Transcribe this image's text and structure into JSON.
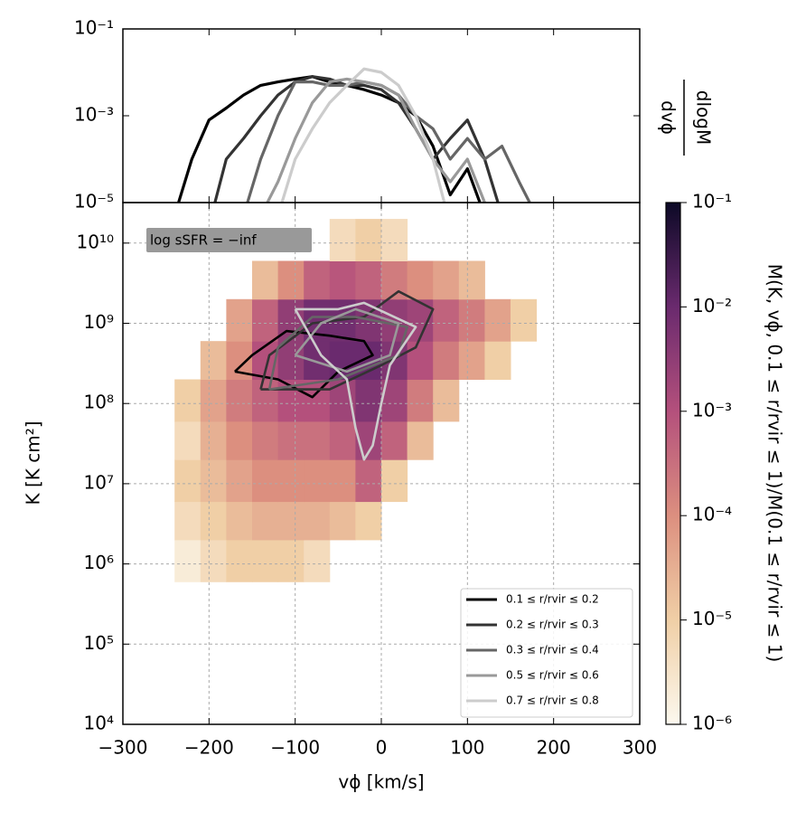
{
  "chart_data": [
    {
      "type": "line",
      "xlim": [
        -300,
        300
      ],
      "xticks": [
        -300,
        -200,
        -100,
        0,
        100,
        200,
        300
      ],
      "ylim": [
        1e-05,
        0.1
      ],
      "log_y": true,
      "yticks": [
        {
          "value": 0.1,
          "label": "10⁻¹"
        },
        {
          "value": 0.001,
          "label": "10⁻³"
        },
        {
          "value": 1e-05,
          "label": "10⁻⁵"
        }
      ],
      "y2label_numerator": "dlogM",
      "y2label_denominator": "dvϕ",
      "legend": "lower right",
      "x": [
        -260,
        -240,
        -220,
        -200,
        -180,
        -160,
        -140,
        -120,
        -100,
        -80,
        -60,
        -40,
        -20,
        0,
        20,
        40,
        60,
        80,
        100,
        120,
        140,
        160,
        180
      ],
      "series": [
        {
          "name": "0.1 ≤ r/rvir ≤ 0.2",
          "color": "#000000",
          "values": [
            null,
            5e-06,
            0.0001,
            0.0008,
            0.0015,
            0.003,
            0.005,
            0.006,
            0.007,
            0.008,
            0.006,
            0.005,
            0.004,
            0.003,
            0.002,
            0.001,
            0.0002,
            1.5e-05,
            6e-05,
            5e-06,
            null,
            null,
            null
          ]
        },
        {
          "name": "0.2 ≤ r/rvir ≤ 0.3",
          "color": "#333333",
          "values": [
            null,
            null,
            null,
            3e-06,
            0.0001,
            0.0003,
            0.001,
            0.003,
            0.006,
            0.008,
            0.007,
            0.005,
            0.005,
            0.004,
            0.002,
            0.0005,
            0.0001,
            0.0003,
            0.0008,
            0.0001,
            5e-06,
            null,
            null
          ]
        },
        {
          "name": "0.3 ≤ r/rvir ≤ 0.4",
          "color": "#666666",
          "values": [
            null,
            null,
            null,
            null,
            null,
            5e-06,
            0.0001,
            0.001,
            0.006,
            0.006,
            0.005,
            0.005,
            0.006,
            0.005,
            0.003,
            0.001,
            0.0005,
            0.0001,
            0.0003,
            0.0001,
            0.0002,
            3e-05,
            5e-06
          ]
        },
        {
          "name": "0.5 ≤ r/rvir ≤ 0.6",
          "color": "#999999",
          "values": [
            null,
            null,
            null,
            null,
            null,
            null,
            5e-06,
            3e-05,
            0.0003,
            0.002,
            0.006,
            0.007,
            0.006,
            0.005,
            0.003,
            0.0005,
            0.0001,
            3e-05,
            0.0001,
            1e-05,
            5e-06,
            null,
            null
          ]
        },
        {
          "name": "0.7 ≤ r/rvir ≤ 0.8",
          "color": "#cccccc",
          "values": [
            null,
            null,
            null,
            null,
            null,
            null,
            null,
            5e-06,
            0.0001,
            0.0005,
            0.002,
            0.005,
            0.012,
            0.01,
            0.005,
            0.001,
            0.0001,
            3e-06,
            null,
            null,
            null,
            null,
            null
          ]
        }
      ]
    },
    {
      "type": "heatmap",
      "xlabel": "vϕ [km/s]",
      "ylabel": "K [K cm²]",
      "annotation": "log sSFR = −inf",
      "xlim": [
        -300,
        300
      ],
      "xticks": [
        {
          "value": -300,
          "label": "−300"
        },
        {
          "value": -200,
          "label": "−200"
        },
        {
          "value": -100,
          "label": "−100"
        },
        0,
        100,
        200,
        300
      ],
      "ylim": [
        10000,
        32000000000
      ],
      "log_y": true,
      "grid": true,
      "yticks": [
        {
          "value": 10000000000,
          "label": "10¹⁰"
        },
        {
          "value": 1000000000,
          "label": "10⁹"
        },
        {
          "value": 100000000,
          "label": "10⁸"
        },
        {
          "value": 10000000,
          "label": "10⁷"
        },
        {
          "value": 1000000,
          "label": "10⁶"
        },
        {
          "value": 100000,
          "label": "10⁵"
        },
        {
          "value": 10000,
          "label": "10⁴"
        }
      ],
      "x_edges": [
        -240,
        -210,
        -180,
        -150,
        -120,
        -90,
        -60,
        -30,
        0,
        30,
        60,
        90,
        120,
        150,
        180
      ],
      "y_edges": [
        600000,
        2000000,
        6000000,
        20000000,
        60000000,
        200000000,
        600000000,
        2000000000,
        6000000000,
        20000000000
      ],
      "z": [
        [
          2e-06,
          5e-06,
          1e-05,
          1e-05,
          1e-05,
          5e-06,
          null,
          null,
          null,
          null,
          null,
          null,
          null,
          null
        ],
        [
          5e-06,
          1e-05,
          2e-05,
          3e-05,
          3e-05,
          3e-05,
          2e-05,
          1e-05,
          null,
          null,
          null,
          null,
          null,
          null
        ],
        [
          1e-05,
          2e-05,
          5e-05,
          0.0001,
          0.0001,
          0.0001,
          0.0001,
          0.0005,
          1e-05,
          null,
          null,
          null,
          null,
          null
        ],
        [
          5e-06,
          3e-05,
          0.0001,
          0.0002,
          0.0003,
          0.0003,
          0.0005,
          0.002,
          0.0005,
          2e-05,
          null,
          null,
          null,
          null
        ],
        [
          1e-05,
          5e-05,
          0.0002,
          0.0005,
          0.001,
          0.001,
          0.002,
          0.005,
          0.002,
          0.0002,
          2e-05,
          null,
          null,
          null
        ],
        [
          null,
          2e-05,
          0.0001,
          0.001,
          0.003,
          0.008,
          0.01,
          0.01,
          0.005,
          0.001,
          0.0002,
          5e-05,
          1e-05,
          null
        ],
        [
          null,
          null,
          5e-05,
          0.0005,
          0.003,
          0.008,
          0.008,
          0.005,
          0.003,
          0.002,
          0.0005,
          0.0002,
          5e-05,
          1e-05
        ],
        [
          null,
          null,
          null,
          2e-05,
          0.0001,
          0.0005,
          0.0008,
          0.0005,
          0.0002,
          0.0001,
          5e-05,
          2e-05,
          null,
          null
        ],
        [
          null,
          null,
          null,
          null,
          null,
          null,
          5e-06,
          1e-05,
          5e-06,
          null,
          null,
          null,
          null,
          null
        ]
      ],
      "clim": [
        1e-06,
        0.1
      ],
      "colormap": [
        "#fcf8ee",
        "#f0cfa6",
        "#dc8f7f",
        "#b4507c",
        "#6a2a6e",
        "#0c0926"
      ],
      "colorbar_label": "M(K, vϕ, 0.1 ≤ r/rvir ≤ 1)/M(0.1 ≤ r/rvir ≤ 1)",
      "cticks": [
        {
          "value": 0.1,
          "label": "10⁻¹"
        },
        {
          "value": 0.01,
          "label": "10⁻²"
        },
        {
          "value": 0.001,
          "label": "10⁻³"
        },
        {
          "value": 0.0001,
          "label": "10⁻⁴"
        },
        {
          "value": 1e-05,
          "label": "10⁻⁵"
        },
        {
          "value": 1e-06,
          "label": "10⁻⁶"
        }
      ],
      "contours": [
        {
          "color": "#000000",
          "x": [
            -170,
            -150,
            -110,
            -60,
            -20,
            -10,
            -50,
            -80,
            -120,
            -170
          ],
          "y": [
            250000000,
            400000000,
            800000000,
            700000000,
            600000000,
            400000000,
            250000000,
            120000000,
            200000000,
            250000000
          ]
        },
        {
          "color": "#333333",
          "x": [
            -140,
            -130,
            -80,
            -20,
            20,
            60,
            40,
            0,
            -60,
            -140
          ],
          "y": [
            150000000,
            400000000,
            1000000000,
            1200000000,
            2500000000,
            1500000000,
            500000000,
            300000000,
            150000000,
            150000000
          ]
        },
        {
          "color": "#666666",
          "x": [
            -130,
            -120,
            -80,
            -30,
            30,
            20,
            -50,
            -130
          ],
          "y": [
            150000000,
            500000000,
            1200000000,
            1200000000,
            900000000,
            400000000,
            200000000,
            150000000
          ]
        },
        {
          "color": "#999999",
          "x": [
            -100,
            -70,
            -30,
            20,
            10,
            -40,
            -100
          ],
          "y": [
            400000000,
            1000000000,
            1500000000,
            1000000000,
            400000000,
            250000000,
            400000000
          ]
        },
        {
          "color": "#cccccc",
          "x": [
            -100,
            -50,
            -20,
            40,
            10,
            0,
            -10,
            -20,
            -30,
            -40,
            -70,
            -100
          ],
          "y": [
            1500000000,
            1500000000,
            1800000000,
            900000000,
            300000000,
            100000000,
            30000000,
            20000000,
            50000000,
            200000000,
            400000000,
            1500000000
          ]
        }
      ]
    }
  ]
}
